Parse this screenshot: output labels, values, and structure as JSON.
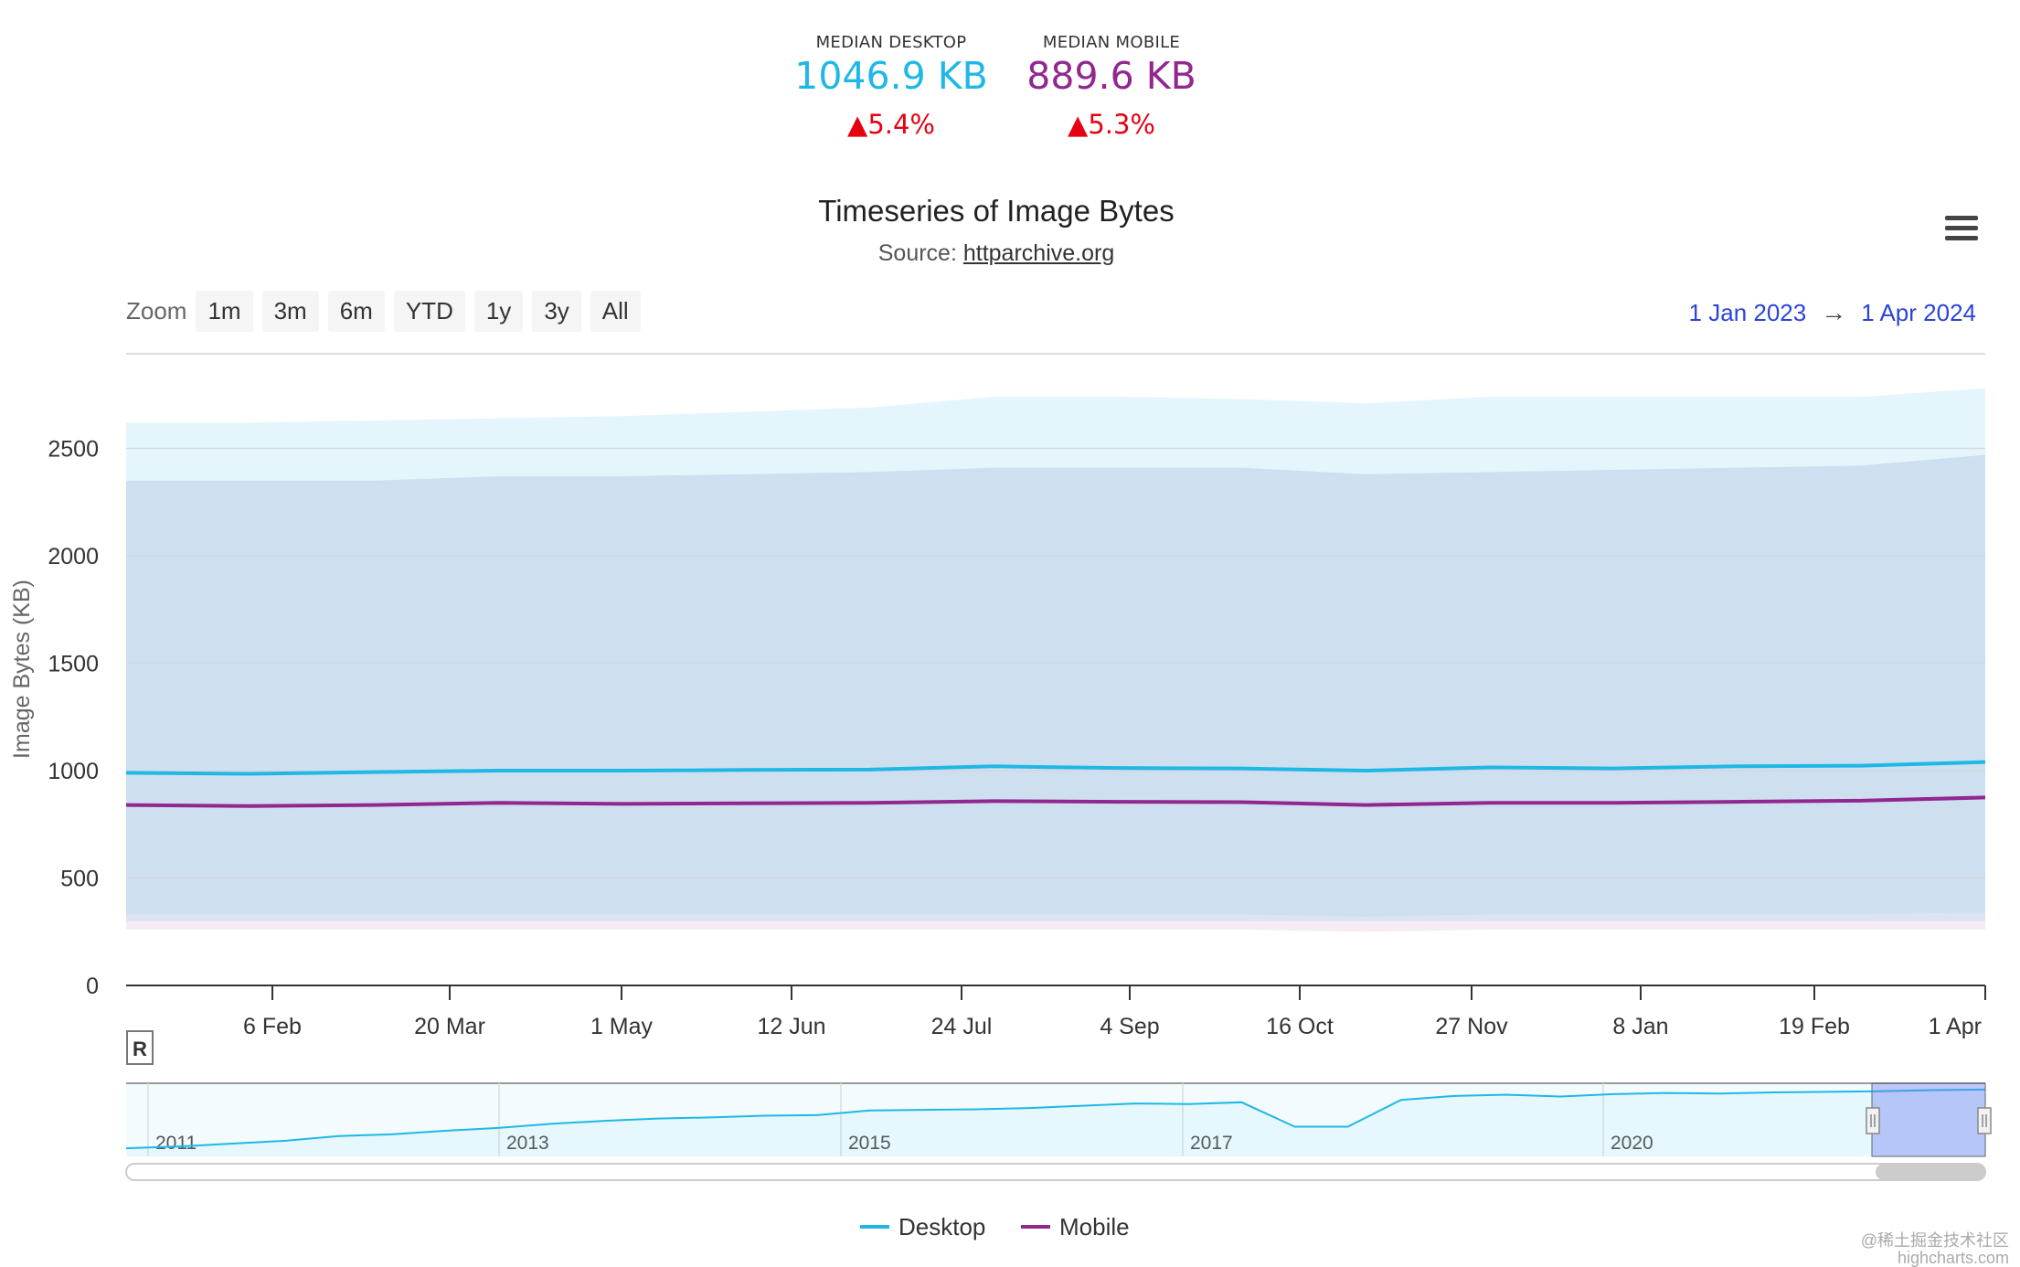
{
  "kpis": {
    "desktop": {
      "label": "MEDIAN DESKTOP",
      "value": "1046.9 KB",
      "change": "5.4%",
      "color": "#1fb8e6"
    },
    "mobile": {
      "label": "MEDIAN MOBILE",
      "value": "889.6 KB",
      "change": "5.3%",
      "color": "#91278f"
    }
  },
  "chart": {
    "title": "Timeseries of Image Bytes",
    "source_prefix": "Source: ",
    "source_link": "httparchive.org"
  },
  "zoom": {
    "label": "Zoom",
    "buttons": [
      "1m",
      "3m",
      "6m",
      "YTD",
      "1y",
      "3y",
      "All"
    ]
  },
  "range": {
    "from": "1 Jan 2023",
    "arrow": "→",
    "to": "1 Apr 2024"
  },
  "reset_label": "R",
  "watermark": {
    "line1": "@稀土掘金技术社区",
    "line2": "highcharts.com"
  },
  "chart_data": {
    "type": "line",
    "ylabel": "Image Bytes (KB)",
    "ylim": [
      0,
      2800
    ],
    "yticks": [
      0,
      500,
      1000,
      1500,
      2000,
      2500
    ],
    "xticks": [
      "6 Feb",
      "20 Mar",
      "1 May",
      "12 Jun",
      "24 Jul",
      "4 Sep",
      "16 Oct",
      "27 Nov",
      "8 Jan",
      "19 Feb",
      "1 Apr"
    ],
    "x": [
      "1 Jan 2023",
      "1 Feb 2023",
      "1 Mar 2023",
      "1 Apr 2023",
      "1 May 2023",
      "1 Jun 2023",
      "1 Jul 2023",
      "1 Aug 2023",
      "1 Sep 2023",
      "1 Oct 2023",
      "1 Nov 2023",
      "1 Dec 2023",
      "1 Jan 2024",
      "1 Feb 2024",
      "1 Mar 2024",
      "1 Apr 2024"
    ],
    "series": [
      {
        "name": "Desktop",
        "color": "#1fb8e6",
        "values": [
          990,
          985,
          993,
          1000,
          1000,
          1003,
          1005,
          1020,
          1012,
          1010,
          1000,
          1015,
          1010,
          1020,
          1023,
          1040
        ],
        "band_outer": {
          "low": [
            300,
            300,
            300,
            300,
            300,
            300,
            300,
            300,
            300,
            300,
            300,
            300,
            300,
            300,
            300,
            300
          ],
          "high": [
            2620,
            2620,
            2630,
            2640,
            2650,
            2670,
            2690,
            2740,
            2740,
            2730,
            2710,
            2740,
            2740,
            2740,
            2740,
            2780
          ]
        },
        "band_inner": {
          "low": [
            330,
            330,
            330,
            330,
            330,
            330,
            330,
            330,
            330,
            330,
            320,
            330,
            330,
            330,
            330,
            340
          ],
          "high": [
            2350,
            2350,
            2350,
            2370,
            2370,
            2380,
            2390,
            2410,
            2410,
            2410,
            2380,
            2390,
            2400,
            2410,
            2420,
            2470
          ]
        }
      },
      {
        "name": "Mobile",
        "color": "#91278f",
        "values": [
          840,
          835,
          840,
          850,
          845,
          848,
          850,
          858,
          855,
          853,
          840,
          850,
          850,
          855,
          860,
          875
        ],
        "band_outer": {
          "low": [
            260,
            260,
            260,
            260,
            260,
            260,
            260,
            260,
            260,
            260,
            250,
            260,
            260,
            260,
            260,
            260
          ],
          "high": [
            2350,
            2350,
            2350,
            2370,
            2370,
            2380,
            2390,
            2410,
            2410,
            2410,
            2380,
            2390,
            2400,
            2410,
            2420,
            2470
          ]
        }
      }
    ],
    "navigator": {
      "year_labels": [
        "2011",
        "2013",
        "2015",
        "2017",
        "2020"
      ],
      "values": [
        30,
        60,
        110,
        160,
        240,
        270,
        330,
        380,
        450,
        500,
        540,
        560,
        590,
        600,
        680,
        690,
        700,
        720,
        760,
        800,
        790,
        820,
        400,
        400,
        860,
        930,
        950,
        920,
        960,
        980,
        970,
        990,
        1000,
        1010,
        1030,
        1040
      ]
    },
    "legend": "bottom-center",
    "grid": true
  }
}
